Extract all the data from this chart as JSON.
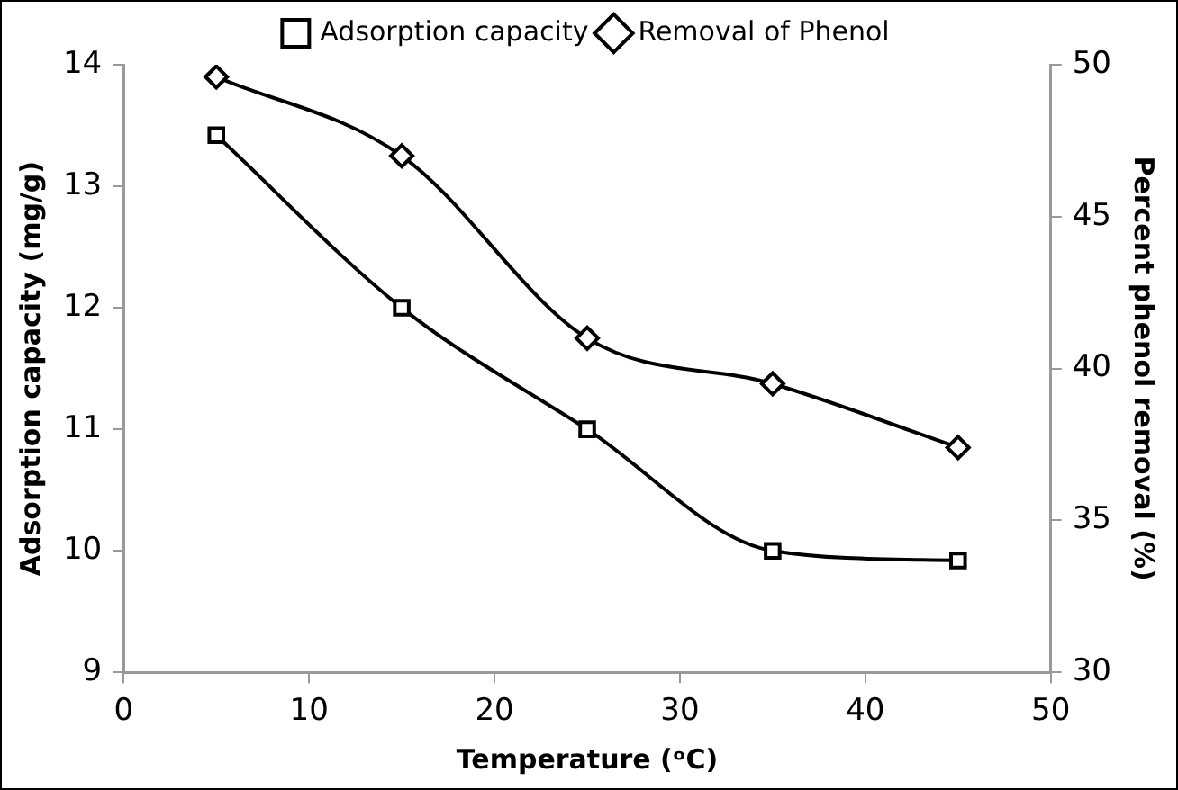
{
  "chart_data": {
    "type": "line",
    "xlabel": "Temperature (ᵒC)",
    "ylabel": "Adsorption capacity (mg/g)",
    "y2label": "Percent phenol removal (%)",
    "x": [
      5,
      15,
      25,
      35,
      45
    ],
    "xlim": [
      0,
      50
    ],
    "xticks": [
      0,
      10,
      20,
      30,
      40,
      50
    ],
    "ylim": [
      9,
      14
    ],
    "yticks": [
      9,
      10,
      11,
      12,
      13,
      14
    ],
    "y2lim": [
      30,
      50
    ],
    "y2ticks": [
      30,
      35,
      40,
      45,
      50
    ],
    "grid": false,
    "legend": "top",
    "line_style": "solid",
    "series": [
      {
        "name": "Adsorption capacity",
        "color": "#000000",
        "marker": "square",
        "values": [
          13.42,
          12.0,
          11.0,
          10.0,
          9.92
        ]
      },
      {
        "name": "Removal of Phenol",
        "color": "#000000",
        "marker": "diamond",
        "axis": "y2",
        "values": [
          49.6,
          47.0,
          41.0,
          39.5,
          37.4
        ]
      }
    ]
  }
}
